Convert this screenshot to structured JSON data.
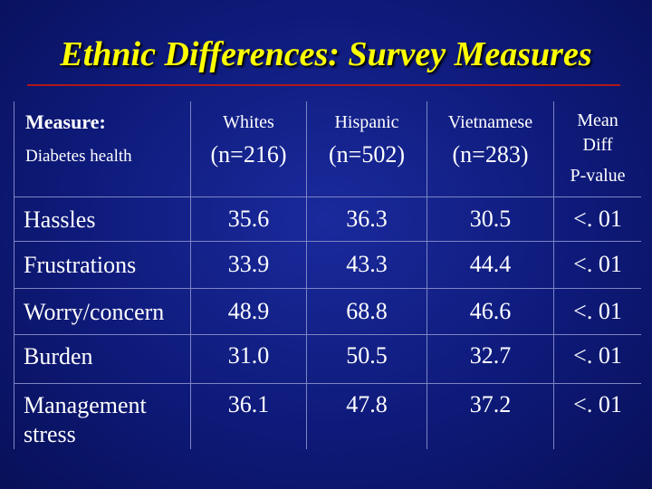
{
  "title": "Ethnic Differences: Survey Measures",
  "header": {
    "measure_label": "Measure:",
    "measure_sub": "Diabetes health",
    "groups": [
      {
        "name": "Whites",
        "n": "(n=216)"
      },
      {
        "name": "Hispanic",
        "n": "(n=502)"
      },
      {
        "name": "Vietnamese",
        "n": "(n=283)"
      }
    ],
    "last": {
      "line1": "Mean",
      "line2": "Diff",
      "line3": "P-value"
    }
  },
  "rows": [
    {
      "label": "Hassles",
      "label2": "",
      "values": [
        "35.6",
        "36.3",
        "30.5"
      ],
      "p": "<. 01"
    },
    {
      "label": "Frustrations",
      "label2": "",
      "values": [
        "33.9",
        "43.3",
        "44.4"
      ],
      "p": "<. 01"
    },
    {
      "label": "Worry/concern",
      "label2": "",
      "values": [
        "48.9",
        "68.8",
        "46.6"
      ],
      "p": "<. 01"
    },
    {
      "label": "Burden",
      "label2": "",
      "values": [
        "31.0",
        "50.5",
        "32.7"
      ],
      "p": "<. 01"
    },
    {
      "label": "Management",
      "label2": "stress",
      "values": [
        "36.1",
        "47.8",
        "37.2"
      ],
      "p": "<. 01"
    }
  ],
  "colors": {
    "background": "#0e1a7a",
    "title": "#ffff00",
    "rule": "#b01818",
    "grid": "#7d85c2",
    "text": "#ffffff"
  }
}
